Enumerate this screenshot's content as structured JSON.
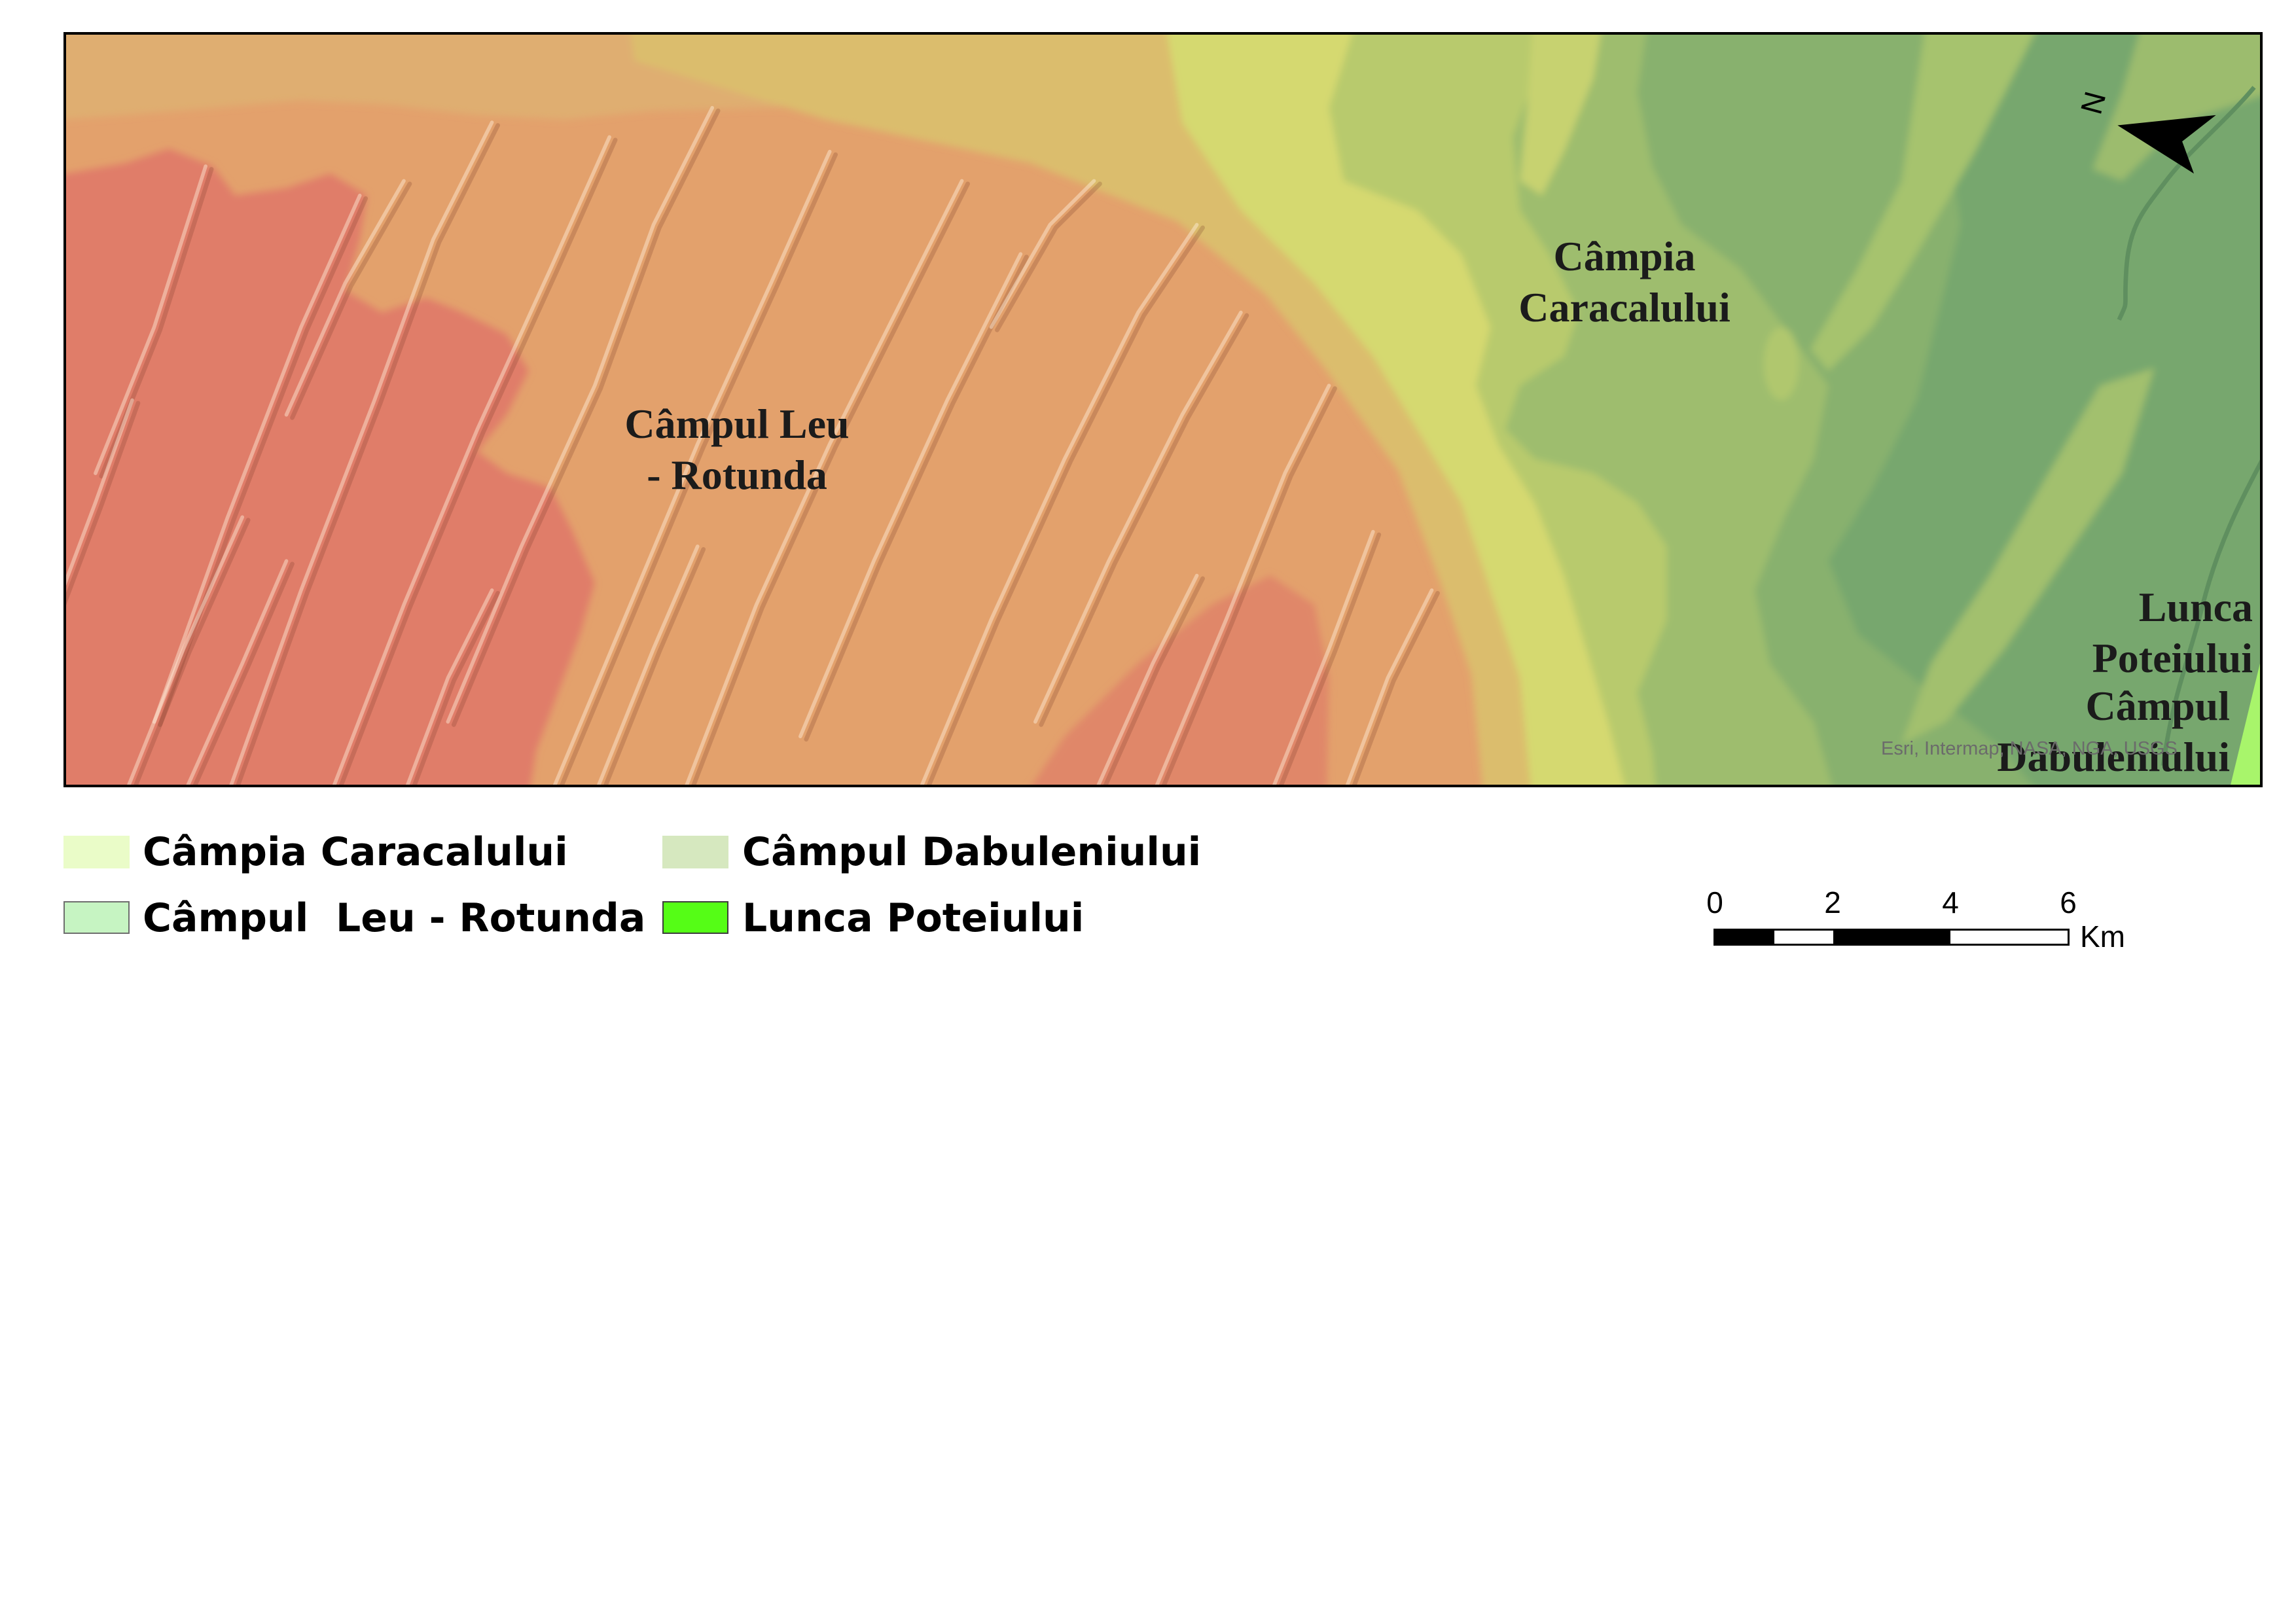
{
  "map": {
    "labels": {
      "campia_caracalului": [
        "Câmpia",
        "Caracalului"
      ],
      "campul_leu_rotunda": [
        "Câmpul Leu",
        "- Rotunda"
      ],
      "lunca_poteiului": [
        "Lunca",
        "Poteiului"
      ],
      "campul_dabuleniului": [
        "Câmpul",
        "Dabuleniului"
      ]
    },
    "attribution": "Esri, Intermap, NASA, NGA, USGS",
    "north_arrow_label": "N"
  },
  "legend": {
    "items": [
      {
        "label": "Câmpia Caracalului",
        "color": "#eafcc8"
      },
      {
        "label": "Câmpul Dabuleniului",
        "color": "#d6e8bf"
      },
      {
        "label": "Câmpul  Leu - Rotunda",
        "color": "#c6f4c2"
      },
      {
        "label": "Lunca Poteiului",
        "color": "#55fd16"
      }
    ]
  },
  "scale_bar": {
    "ticks": [
      "0",
      "2",
      "4",
      "6"
    ],
    "unit": "Km"
  }
}
